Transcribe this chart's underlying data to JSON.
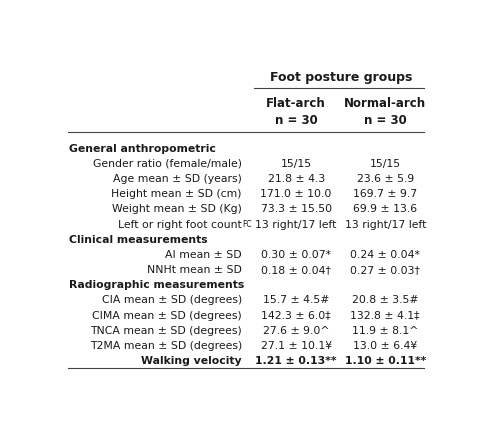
{
  "title": "Foot posture groups",
  "col1_header_line1": "Flat-arch",
  "col1_header_line2": "n = 30",
  "col2_header_line1": "Normal-arch",
  "col2_header_line2": "n = 30",
  "rows": [
    {
      "label": "General anthropometric",
      "bold": true,
      "indent": false,
      "val1": "",
      "val2": "",
      "val_bold": false
    },
    {
      "label": "Gender ratio (female/male)",
      "bold": false,
      "indent": true,
      "val1": "15/15",
      "val2": "15/15",
      "val_bold": false
    },
    {
      "label": "Age mean ± SD (years)",
      "bold": false,
      "indent": true,
      "val1": "21.8 ± 4.3",
      "val2": "23.6 ± 5.9",
      "val_bold": false
    },
    {
      "label": "Height mean ± SD (cm)",
      "bold": false,
      "indent": true,
      "val1": "171.0 ± 10.0",
      "val2": "169.7 ± 9.7",
      "val_bold": false
    },
    {
      "label": "Weight mean ± SD (Kg)",
      "bold": false,
      "indent": true,
      "val1": "73.3 ± 15.50",
      "val2": "69.9 ± 13.6",
      "val_bold": false
    },
    {
      "label": "Left or right foot count",
      "superscript": "FC",
      "bold": false,
      "indent": true,
      "val1": "13 right/17 left",
      "val2": "13 right/17 left",
      "val_bold": false
    },
    {
      "label": "Clinical measurements",
      "bold": true,
      "indent": false,
      "val1": "",
      "val2": "",
      "val_bold": false
    },
    {
      "label": "AI mean ± SD",
      "bold": false,
      "indent": true,
      "val1": "0.30 ± 0.07*",
      "val2": "0.24 ± 0.04*",
      "val_bold": false
    },
    {
      "label": "NNHt mean ± SD",
      "bold": false,
      "indent": true,
      "val1": "0.18 ± 0.04†",
      "val2": "0.27 ± 0.03†",
      "val_bold": false
    },
    {
      "label": "Radiographic measurements",
      "bold": true,
      "indent": false,
      "val1": "",
      "val2": "",
      "val_bold": false
    },
    {
      "label": "CIA mean ± SD (degrees)",
      "bold": false,
      "indent": true,
      "val1": "15.7 ± 4.5#",
      "val2": "20.8 ± 3.5#",
      "val_bold": false
    },
    {
      "label": "CIMA mean ± SD (degrees)",
      "bold": false,
      "indent": true,
      "val1": "142.3 ± 6.0‡",
      "val2": "132.8 ± 4.1‡",
      "val_bold": false
    },
    {
      "label": "TNCA mean ± SD (degrees)",
      "bold": false,
      "indent": true,
      "val1": "27.6 ± 9.0^",
      "val2": "11.9 ± 8.1^",
      "val_bold": false
    },
    {
      "label": "T2MA mean ± SD (degrees)",
      "bold": false,
      "indent": true,
      "val1": "27.1 ± 10.1¥",
      "val2": "13.0 ± 6.4¥",
      "val_bold": false
    },
    {
      "label": "Walking velocity",
      "bold": true,
      "indent": true,
      "val1": "1.21 ± 0.13**",
      "val2": "1.10 ± 0.11**",
      "val_bold": true
    }
  ],
  "bg_color": "#ffffff",
  "text_color": "#1a1a1a",
  "line_color": "#444444",
  "font_family": "DejaVu Sans"
}
